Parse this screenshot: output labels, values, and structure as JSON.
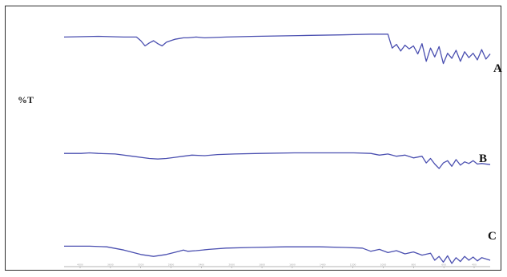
{
  "chart_data": {
    "type": "line",
    "title": "",
    "xlabel": "",
    "ylabel": "%T",
    "grid": false,
    "legend": "none",
    "line_color": "#4a4fb0",
    "xlim": [
      0,
      100
    ],
    "ylim": [
      0,
      100
    ],
    "series": [
      {
        "name": "A",
        "x": [
          0,
          8,
          14,
          17,
          18,
          19,
          20,
          21,
          22,
          23,
          24,
          25,
          26,
          27,
          28,
          29,
          31,
          33,
          38,
          45,
          55,
          65,
          72,
          76,
          77,
          78,
          79,
          80,
          81,
          82,
          83,
          84,
          85,
          86,
          87,
          88,
          89,
          90,
          91,
          92,
          93,
          94,
          95,
          96,
          97,
          98,
          99,
          100
        ],
        "y": [
          93,
          94,
          93,
          93,
          88,
          81,
          85,
          88,
          84,
          81,
          86,
          88,
          90,
          91,
          92,
          92,
          93,
          92,
          93,
          94,
          95,
          96,
          97,
          97,
          78,
          83,
          74,
          82,
          77,
          81,
          70,
          84,
          60,
          78,
          66,
          80,
          57,
          71,
          64,
          75,
          60,
          73,
          65,
          71,
          62,
          76,
          63,
          70
        ]
      },
      {
        "name": "B",
        "x": [
          0,
          4,
          6,
          8,
          12,
          16,
          20,
          22,
          24,
          26,
          28,
          30,
          33,
          36,
          40,
          46,
          54,
          62,
          68,
          72,
          74,
          76,
          78,
          80,
          82,
          84,
          85,
          86,
          87,
          88,
          89,
          90,
          91,
          92,
          93,
          94,
          95,
          96,
          97,
          98,
          100
        ],
        "y": [
          54,
          54,
          55,
          54,
          53,
          49,
          45,
          44,
          45,
          47,
          49,
          51,
          50,
          52,
          53,
          54,
          55,
          55,
          55,
          54,
          51,
          53,
          49,
          51,
          46,
          49,
          37,
          45,
          35,
          27,
          37,
          41,
          31,
          43,
          33,
          39,
          36,
          41,
          35,
          36,
          34
        ]
      },
      {
        "name": "C",
        "x": [
          0,
          6,
          10,
          14,
          18,
          21,
          24,
          27,
          28,
          29,
          31,
          34,
          38,
          44,
          52,
          60,
          66,
          70,
          72,
          74,
          76,
          78,
          80,
          82,
          84,
          86,
          87,
          88,
          89,
          90,
          91,
          92,
          93,
          94,
          95,
          96,
          97,
          98,
          100
        ],
        "y": [
          27,
          27,
          26,
          21,
          14,
          11,
          14,
          19,
          21,
          19,
          20,
          22,
          24,
          25,
          26,
          26,
          25,
          24,
          19,
          22,
          17,
          20,
          15,
          18,
          13,
          16,
          5,
          11,
          2,
          12,
          0,
          9,
          3,
          11,
          5,
          10,
          4,
          9,
          5
        ]
      }
    ],
    "tick_labels": [
      "4000",
      "3600",
      "3200",
      "2800",
      "2400",
      "2000",
      "1800",
      "1600",
      "1400",
      "1200",
      "1000",
      "800",
      "600",
      "400"
    ]
  }
}
